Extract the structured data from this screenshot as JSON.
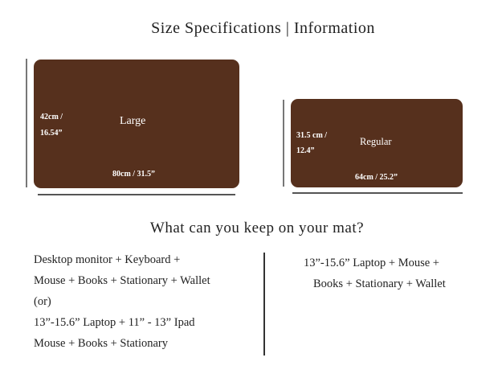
{
  "title": "Size Specifications | Information",
  "large": {
    "name": "Large",
    "height": "42cm /",
    "height_in": "16.54”",
    "width": "80cm / 31.5”"
  },
  "regular": {
    "name": "Regular",
    "height": "31.5 cm /",
    "height_in": "12.4”",
    "width": "64cm / 25.2”"
  },
  "colors": {
    "mat": "#56301d"
  },
  "question": "What can you keep on your mat?",
  "left_list": [
    "Desktop monitor + Keyboard +",
    "Mouse + Books + Stationary + Wallet",
    "(or)",
    "13”-15.6” Laptop + 11” - 13” Ipad",
    "Mouse + Books + Stationary"
  ],
  "right_list": [
    "13”-15.6” Laptop + Mouse +",
    "Books + Stationary + Wallet"
  ]
}
